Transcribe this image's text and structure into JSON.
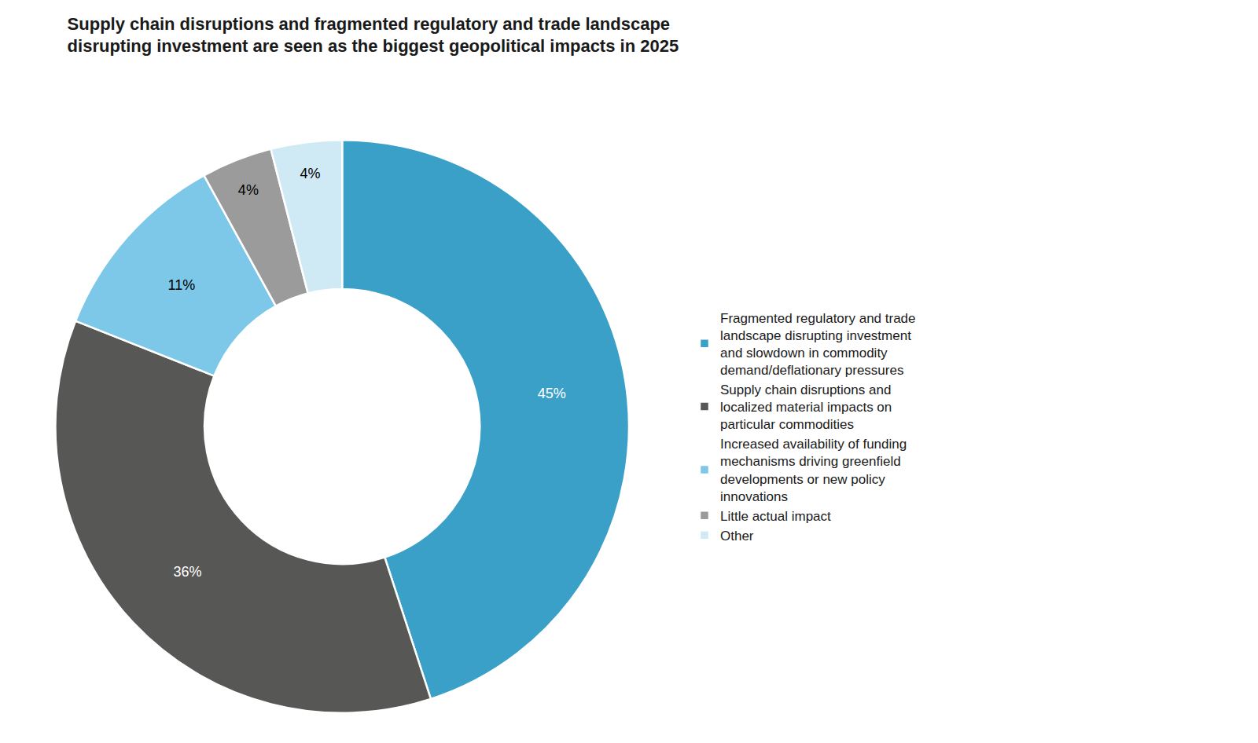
{
  "chart_data": {
    "type": "pie",
    "title": "Supply chain disruptions and fragmented regulatory and trade landscape\ndisrupting investment are seen as the biggest geopolitical impacts in 2025",
    "categories": [
      "Fragmented regulatory and trade\nlandscape disrupting investment\nand slowdown in commodity\ndemand/deflationary pressures",
      "Supply chain disruptions and\nlocalized material impacts on\nparticular commodities",
      "Increased availability of funding\nmechanisms driving greenfield\ndevelopments or new policy\ninnovations",
      "Little actual impact",
      "Other"
    ],
    "values": [
      45,
      36,
      11,
      4,
      4
    ],
    "value_labels": [
      "45%",
      "36%",
      "11%",
      "4%",
      "4%"
    ],
    "colors": [
      "#3aa0c8",
      "#575756",
      "#7dc8e8",
      "#9b9b9b",
      "#d0eaf5"
    ],
    "data_labels": true,
    "legend": "right"
  }
}
